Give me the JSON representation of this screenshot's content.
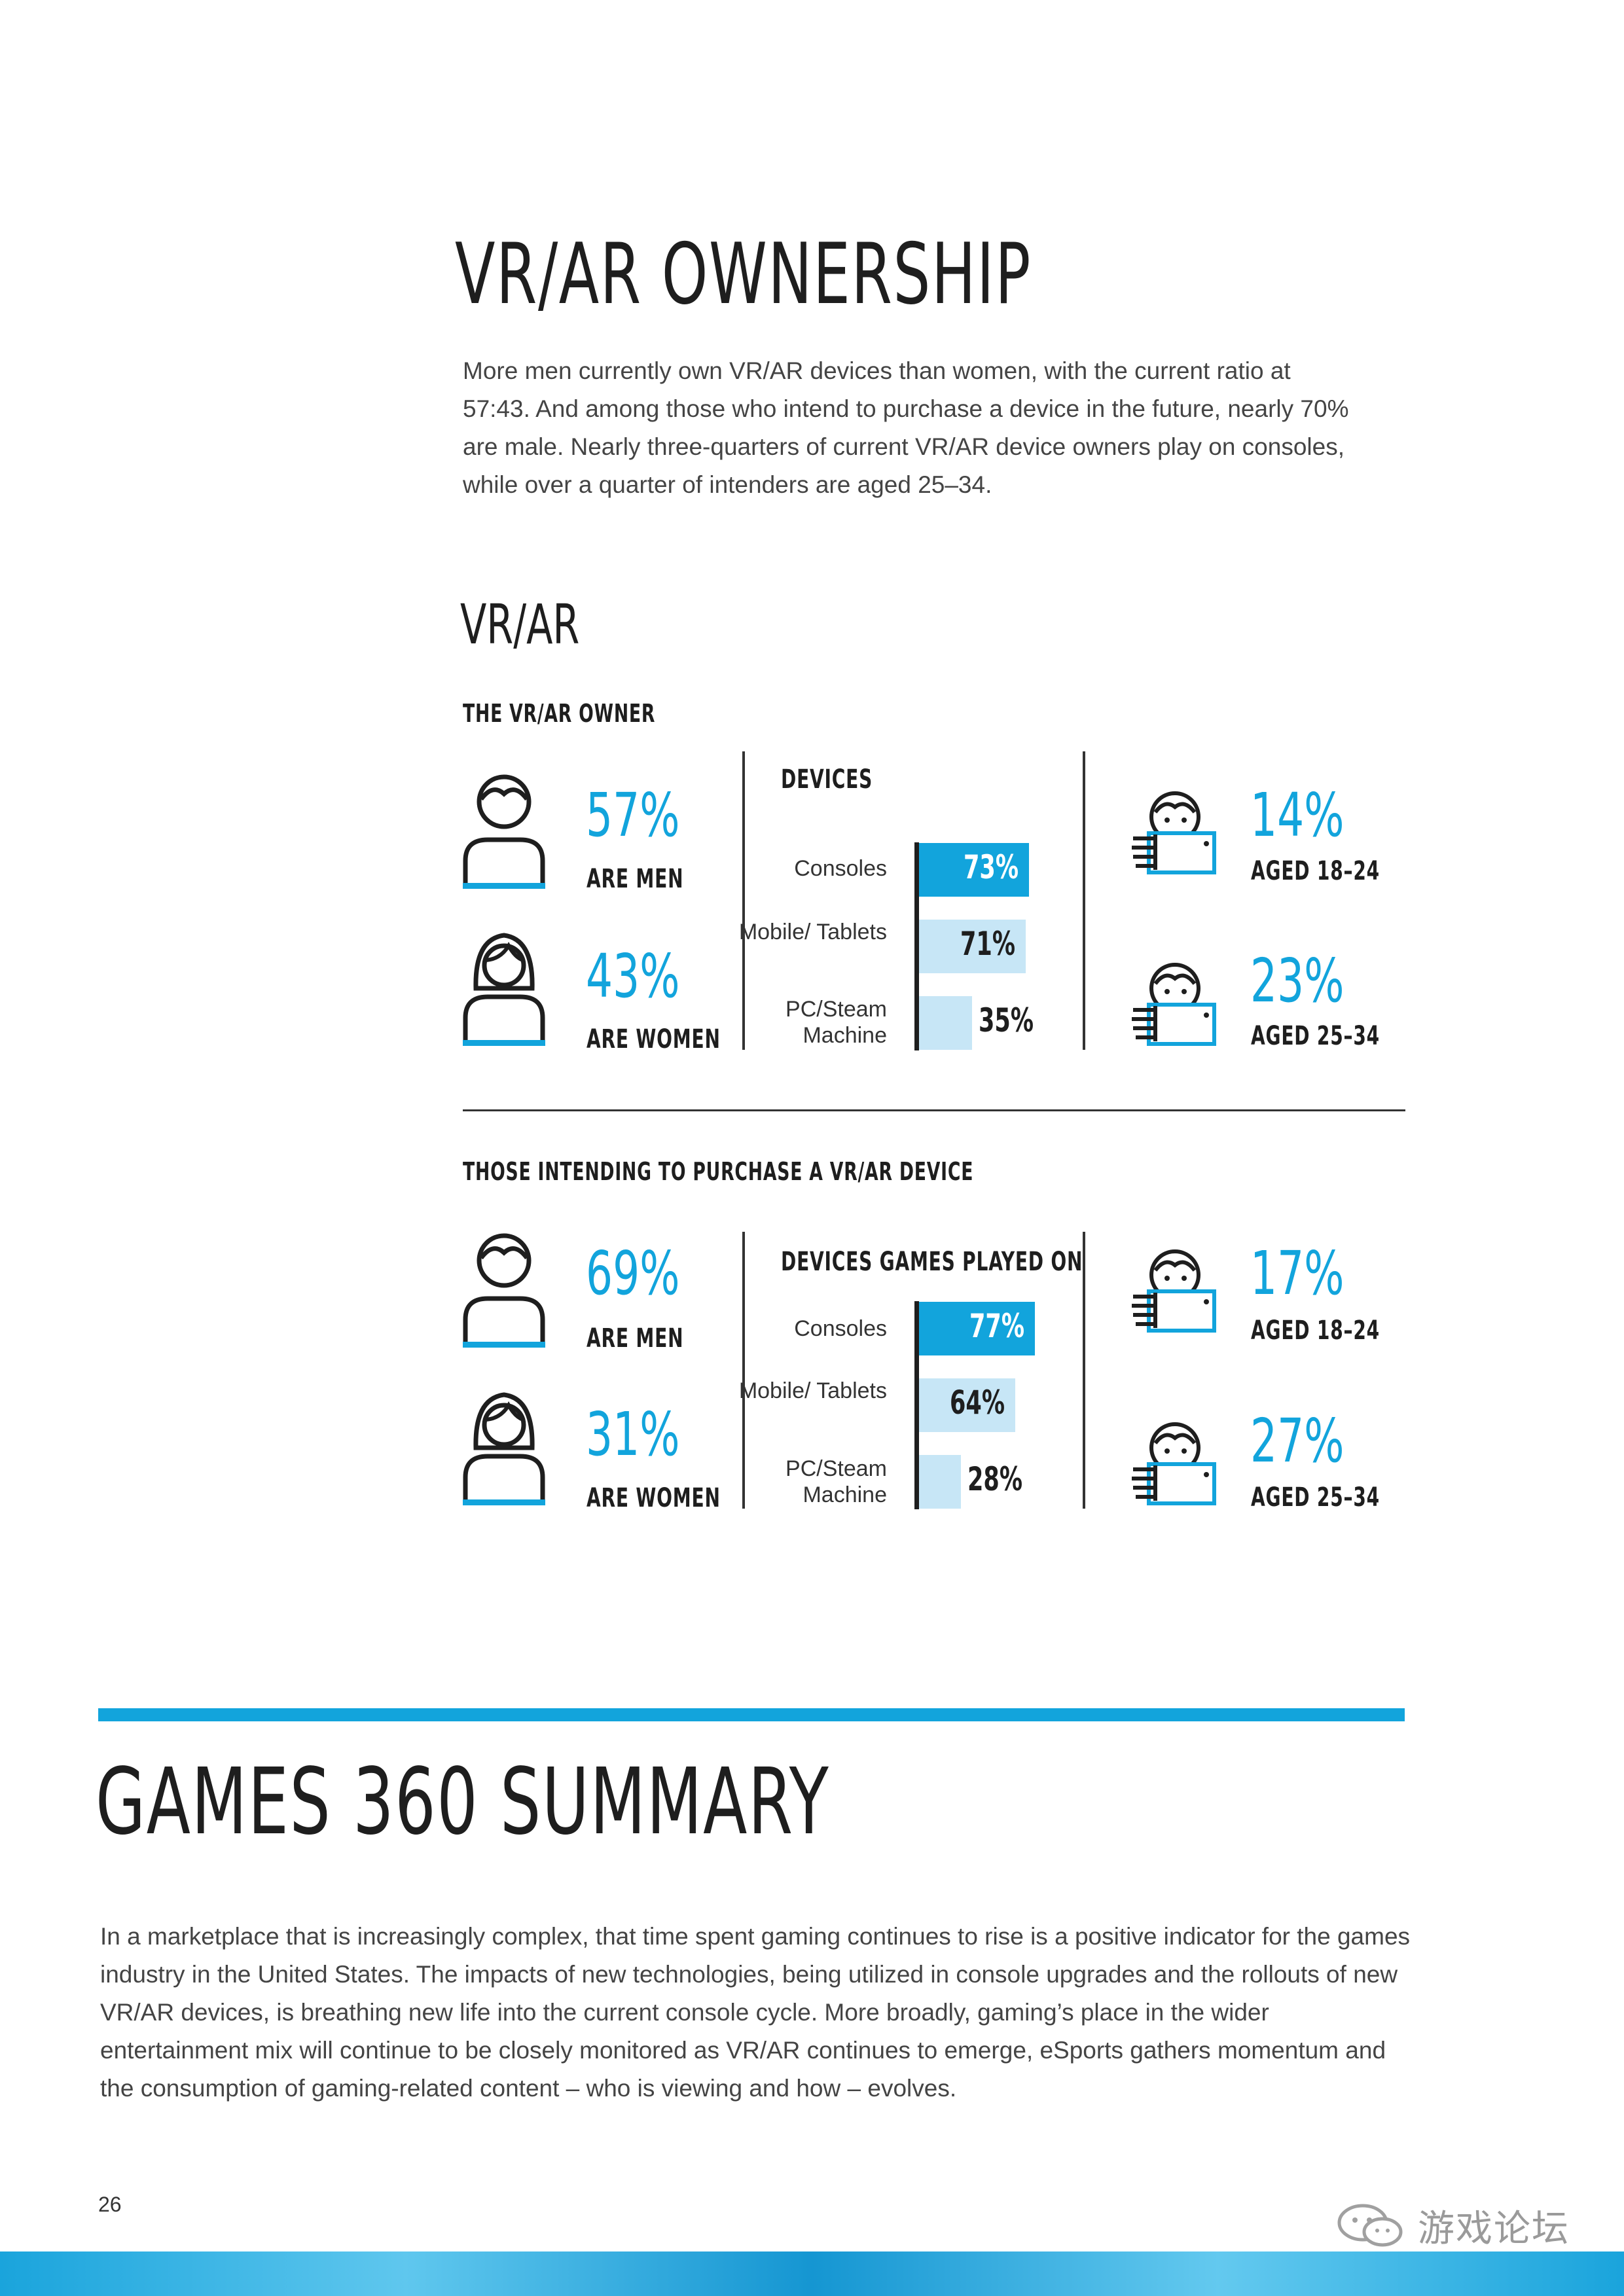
{
  "title": "VR/AR OWNERSHIP",
  "intro": "More men currently own VR/AR devices than women, with the current ratio at 57:43. And among those who intend to purchase a device in the future, nearly 70% are male. Nearly three-quarters of current VR/AR device owners play on consoles, while over a quarter of intenders are aged 25–34.",
  "section_title": "VR/AR",
  "owner": {
    "heading": "THE VR/AR OWNER",
    "men_pct": "57%",
    "men_label": "ARE MEN",
    "women_pct": "43%",
    "women_label": "ARE WOMEN",
    "devices_heading": "DEVICES",
    "devices": [
      {
        "label": "Consoles",
        "value": 73,
        "value_text": "73%"
      },
      {
        "label": "Mobile/ Tablets",
        "value": 71,
        "value_text": "71%"
      },
      {
        "label": "PC/Steam Machine",
        "value": 35,
        "value_text": "35%"
      }
    ],
    "age1_pct": "14%",
    "age1_label": "AGED 18–24",
    "age2_pct": "23%",
    "age2_label": "AGED 25–34"
  },
  "intenders": {
    "heading": "THOSE INTENDING TO PURCHASE A VR/AR DEVICE",
    "men_pct": "69%",
    "men_label": "ARE MEN",
    "women_pct": "31%",
    "women_label": "ARE WOMEN",
    "devices_heading": "DEVICES GAMES PLAYED ON",
    "devices": [
      {
        "label": "Consoles",
        "value": 77,
        "value_text": "77%"
      },
      {
        "label": "Mobile/ Tablets",
        "value": 64,
        "value_text": "64%"
      },
      {
        "label": "PC/Steam Machine",
        "value": 28,
        "value_text": "28%"
      }
    ],
    "age1_pct": "17%",
    "age1_label": "AGED 18–24",
    "age2_pct": "27%",
    "age2_label": "AGED 25–34"
  },
  "summary": {
    "title": "GAMES 360 SUMMARY",
    "text": "In a marketplace that is increasingly complex, that time spent gaming continues to rise is a positive indicator for the games industry in the United States. The impacts of new technologies, being utilized in console upgrades and the rollouts of new VR/AR devices, is breathing new life into the current console cycle. More broadly, gaming’s place in the wider entertainment mix will continue to be closely monitored as VR/AR continues to emerge, eSports gathers momentum and the consumption of gaming-related content – who is viewing and how – evolves."
  },
  "page_number": "26",
  "watermark": "游戏论坛",
  "colors": {
    "accent": "#12a4dc",
    "light_bar": "#c7e6f6",
    "text": "#1e1e1e"
  }
}
